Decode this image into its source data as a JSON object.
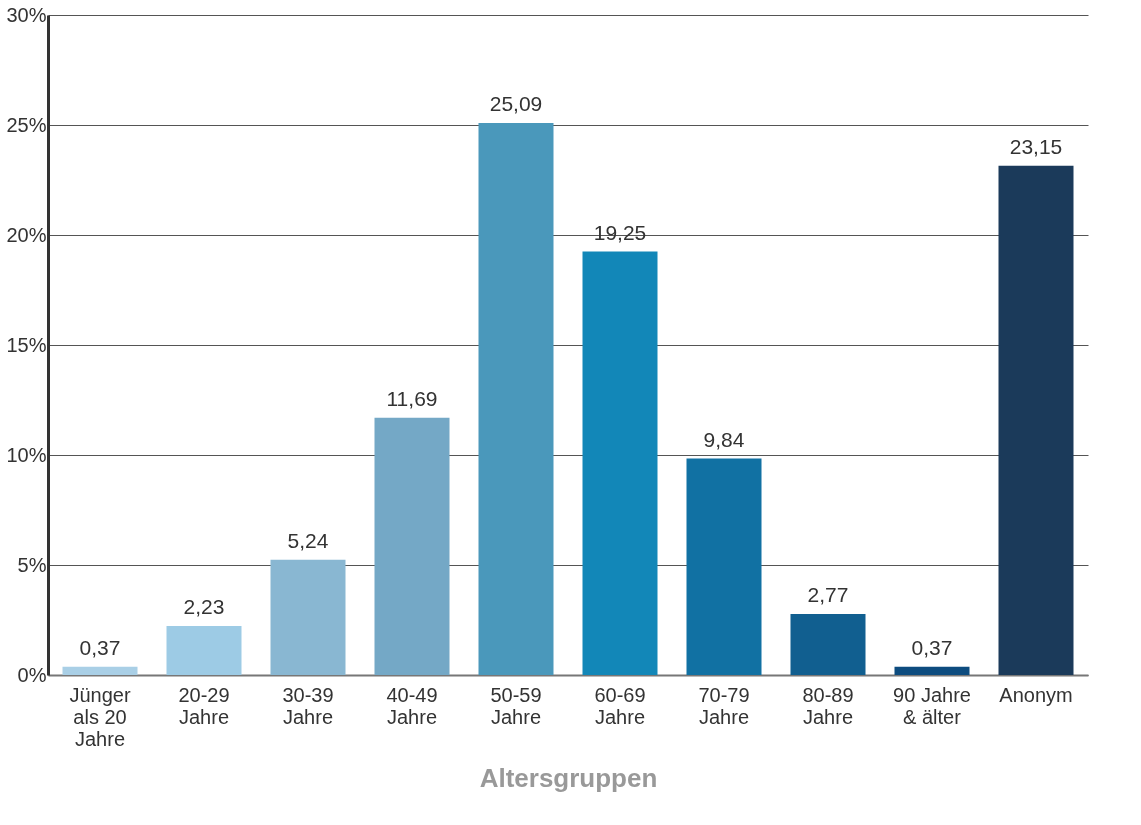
{
  "chart_data": {
    "type": "bar",
    "xlabel": "Altersgruppen",
    "categories": [
      "Jünger\nals 20\nJahre",
      "20-29\nJahre",
      "30-39\nJahre",
      "40-49\nJahre",
      "50-59\nJahre",
      "60-69\nJahre",
      "70-79\nJahre",
      "80-89\nJahre",
      "90 Jahre\n& älter",
      "Anonym"
    ],
    "values": [
      0.37,
      2.23,
      5.24,
      11.69,
      25.09,
      19.25,
      9.84,
      2.77,
      0.37,
      23.15
    ],
    "value_labels": [
      "0,37",
      "2,23",
      "5,24",
      "11,69",
      "25,09",
      "19,25",
      "9,84",
      "2,77",
      "0,37",
      "23,15"
    ],
    "colors": [
      "#a9cfe6",
      "#9dcbe5",
      "#89b7d2",
      "#74a8c6",
      "#4a98bb",
      "#1287b8",
      "#1171a3",
      "#115f90",
      "#0d4c7f",
      "#1b3a5a"
    ],
    "ylim": [
      0,
      30
    ],
    "yticks": [
      {
        "value": 0,
        "label": "0%"
      },
      {
        "value": 5,
        "label": "5%"
      },
      {
        "value": 10,
        "label": "10%"
      },
      {
        "value": 15,
        "label": "15%"
      },
      {
        "value": 20,
        "label": "20%"
      },
      {
        "value": 25,
        "label": "25%"
      },
      {
        "value": 30,
        "label": "30%"
      }
    ],
    "grid": "y",
    "legend": false
  }
}
